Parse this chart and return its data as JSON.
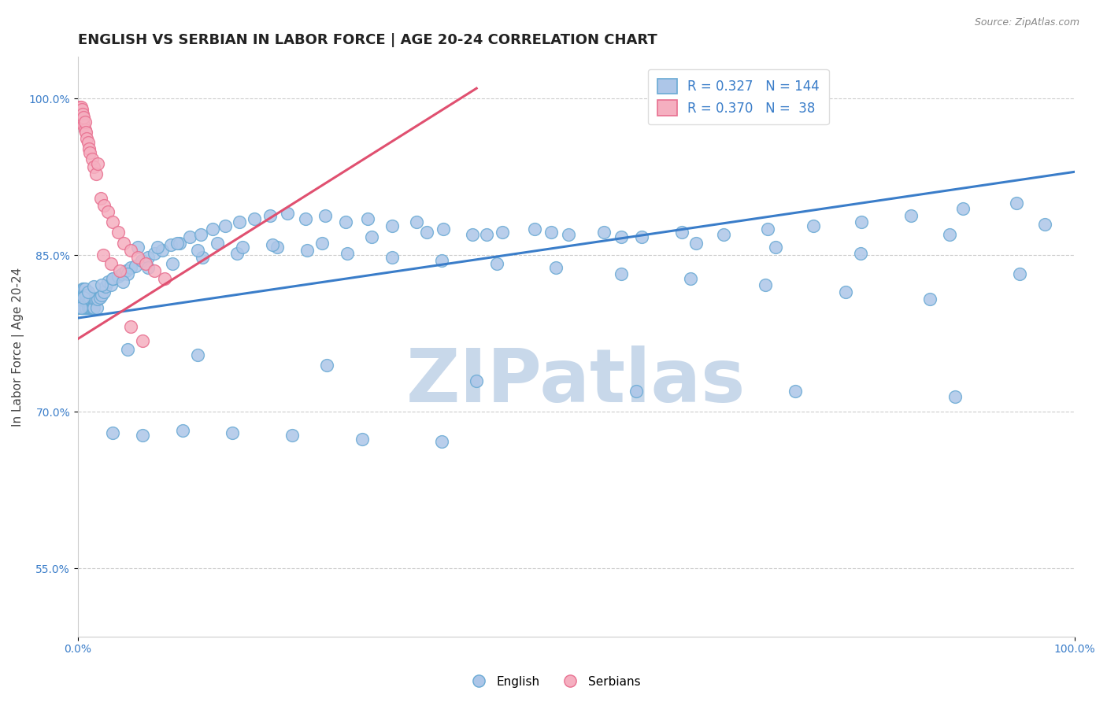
{
  "title": "ENGLISH VS SERBIAN IN LABOR FORCE | AGE 20-24 CORRELATION CHART",
  "source_text": "Source: ZipAtlas.com",
  "ylabel": "In Labor Force | Age 20-24",
  "xlim": [
    0.0,
    1.0
  ],
  "ylim": [
    0.485,
    1.04
  ],
  "yticks": [
    0.55,
    0.7,
    0.85,
    1.0
  ],
  "ytick_labels": [
    "55.0%",
    "70.0%",
    "85.0%",
    "100.0%"
  ],
  "xticks": [
    0.0,
    1.0
  ],
  "xtick_labels": [
    "0.0%",
    "100.0%"
  ],
  "legend_english_r": "0.327",
  "legend_english_n": "144",
  "legend_serbian_r": "0.370",
  "legend_serbian_n": " 38",
  "english_color": "#adc6e8",
  "serbian_color": "#f5afc0",
  "english_edge_color": "#6aaad4",
  "serbian_edge_color": "#e87090",
  "english_line_color": "#3a7dc9",
  "serbian_line_color": "#e05070",
  "watermark": "ZIPatlas",
  "watermark_color": "#c8d8ea",
  "background_color": "#ffffff",
  "english_x": [
    0.001,
    0.002,
    0.002,
    0.003,
    0.003,
    0.003,
    0.004,
    0.004,
    0.004,
    0.005,
    0.005,
    0.005,
    0.005,
    0.006,
    0.006,
    0.006,
    0.006,
    0.007,
    0.007,
    0.007,
    0.007,
    0.008,
    0.008,
    0.008,
    0.009,
    0.009,
    0.01,
    0.01,
    0.01,
    0.011,
    0.011,
    0.012,
    0.012,
    0.013,
    0.013,
    0.014,
    0.015,
    0.015,
    0.016,
    0.017,
    0.018,
    0.019,
    0.02,
    0.022,
    0.024,
    0.026,
    0.028,
    0.03,
    0.033,
    0.036,
    0.04,
    0.044,
    0.048,
    0.053,
    0.058,
    0.064,
    0.07,
    0.077,
    0.085,
    0.093,
    0.102,
    0.112,
    0.123,
    0.135,
    0.148,
    0.162,
    0.177,
    0.193,
    0.21,
    0.228,
    0.248,
    0.269,
    0.291,
    0.315,
    0.34,
    0.367,
    0.396,
    0.426,
    0.458,
    0.492,
    0.528,
    0.566,
    0.606,
    0.648,
    0.692,
    0.738,
    0.786,
    0.836,
    0.888,
    0.942,
    0.003,
    0.006,
    0.01,
    0.016,
    0.024,
    0.035,
    0.05,
    0.07,
    0.095,
    0.125,
    0.16,
    0.2,
    0.245,
    0.295,
    0.35,
    0.41,
    0.475,
    0.545,
    0.62,
    0.7,
    0.785,
    0.875,
    0.97,
    0.045,
    0.06,
    0.08,
    0.1,
    0.12,
    0.14,
    0.165,
    0.195,
    0.23,
    0.27,
    0.315,
    0.365,
    0.42,
    0.48,
    0.545,
    0.615,
    0.69,
    0.77,
    0.855,
    0.945,
    0.05,
    0.12,
    0.25,
    0.4,
    0.56,
    0.72,
    0.88,
    0.035,
    0.065,
    0.105,
    0.155,
    0.215,
    0.285,
    0.365
  ],
  "english_y": [
    0.8,
    0.8,
    0.808,
    0.8,
    0.808,
    0.815,
    0.8,
    0.808,
    0.815,
    0.8,
    0.806,
    0.812,
    0.818,
    0.8,
    0.806,
    0.812,
    0.818,
    0.8,
    0.806,
    0.812,
    0.818,
    0.8,
    0.806,
    0.812,
    0.806,
    0.812,
    0.8,
    0.806,
    0.812,
    0.8,
    0.806,
    0.8,
    0.806,
    0.8,
    0.808,
    0.8,
    0.8,
    0.81,
    0.8,
    0.808,
    0.808,
    0.8,
    0.808,
    0.81,
    0.812,
    0.815,
    0.82,
    0.825,
    0.822,
    0.828,
    0.83,
    0.832,
    0.835,
    0.838,
    0.84,
    0.845,
    0.848,
    0.852,
    0.855,
    0.86,
    0.862,
    0.868,
    0.87,
    0.875,
    0.878,
    0.882,
    0.885,
    0.888,
    0.89,
    0.885,
    0.888,
    0.882,
    0.885,
    0.878,
    0.882,
    0.875,
    0.87,
    0.872,
    0.875,
    0.87,
    0.872,
    0.868,
    0.872,
    0.87,
    0.875,
    0.878,
    0.882,
    0.888,
    0.895,
    0.9,
    0.8,
    0.81,
    0.815,
    0.82,
    0.822,
    0.828,
    0.832,
    0.838,
    0.842,
    0.848,
    0.852,
    0.858,
    0.862,
    0.868,
    0.872,
    0.87,
    0.872,
    0.868,
    0.862,
    0.858,
    0.852,
    0.87,
    0.88,
    0.825,
    0.858,
    0.858,
    0.862,
    0.855,
    0.862,
    0.858,
    0.86,
    0.855,
    0.852,
    0.848,
    0.845,
    0.842,
    0.838,
    0.832,
    0.828,
    0.822,
    0.815,
    0.808,
    0.832,
    0.76,
    0.755,
    0.745,
    0.73,
    0.72,
    0.72,
    0.715,
    0.68,
    0.678,
    0.682,
    0.68,
    0.678,
    0.674,
    0.672
  ],
  "serbian_x": [
    0.001,
    0.002,
    0.002,
    0.003,
    0.003,
    0.004,
    0.004,
    0.005,
    0.005,
    0.006,
    0.006,
    0.007,
    0.007,
    0.008,
    0.009,
    0.01,
    0.011,
    0.012,
    0.014,
    0.016,
    0.018,
    0.02,
    0.023,
    0.026,
    0.03,
    0.035,
    0.04,
    0.046,
    0.053,
    0.06,
    0.068,
    0.077,
    0.087,
    0.025,
    0.033,
    0.042,
    0.053,
    0.065
  ],
  "serbian_y": [
    0.99,
    0.988,
    0.992,
    0.985,
    0.992,
    0.98,
    0.99,
    0.978,
    0.985,
    0.975,
    0.982,
    0.97,
    0.978,
    0.968,
    0.962,
    0.958,
    0.952,
    0.948,
    0.942,
    0.935,
    0.928,
    0.938,
    0.905,
    0.898,
    0.892,
    0.882,
    0.872,
    0.862,
    0.855,
    0.848,
    0.842,
    0.835,
    0.828,
    0.85,
    0.842,
    0.835,
    0.782,
    0.768
  ],
  "english_trend_x": [
    0.0,
    1.0
  ],
  "english_trend_y": [
    0.79,
    0.93
  ],
  "serbian_trend_x": [
    0.0,
    0.4
  ],
  "serbian_trend_y": [
    0.77,
    1.01
  ],
  "title_fontsize": 13,
  "axis_label_fontsize": 11,
  "tick_fontsize": 10
}
